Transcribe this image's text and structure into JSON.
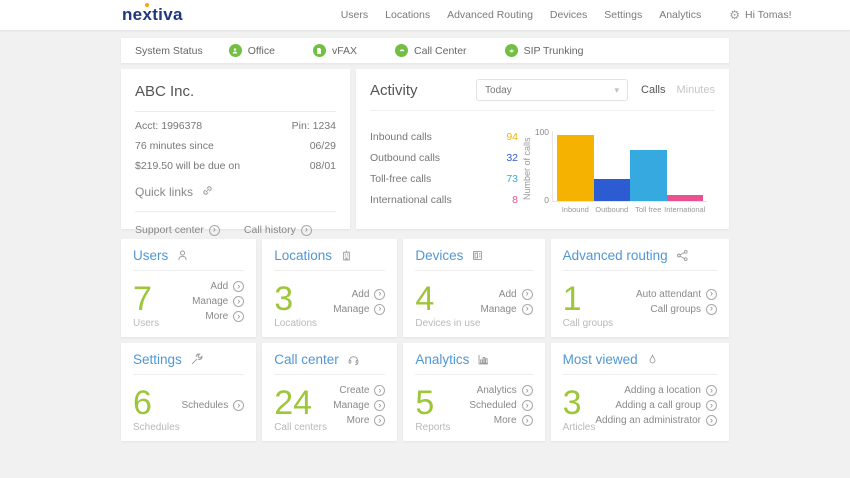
{
  "header": {
    "logo": "nextiva",
    "nav": [
      "Users",
      "Locations",
      "Advanced Routing",
      "Devices",
      "Settings",
      "Analytics"
    ],
    "greeting": "Hi Tomas!"
  },
  "status_bar": {
    "label": "System Status",
    "status_color": "#72bf44",
    "services": [
      {
        "name": "Office",
        "icon": "office-status-icon"
      },
      {
        "name": "vFAX",
        "icon": "vfax-status-icon"
      },
      {
        "name": "Call Center",
        "icon": "callcenter-status-icon"
      },
      {
        "name": "SIP Trunking",
        "icon": "sip-status-icon"
      }
    ]
  },
  "account": {
    "title": "ABC Inc.",
    "rows": [
      {
        "left": "Acct: 1996378",
        "right": "Pin: 1234"
      },
      {
        "left": "76 minutes since",
        "right": "06/29"
      },
      {
        "left": "$219.50 will be due on",
        "right": "08/01"
      }
    ],
    "quick_links_label": "Quick links",
    "footer_links": [
      "Support center",
      "Call history"
    ]
  },
  "activity": {
    "title": "Activity",
    "period_selected": "Today",
    "unit_tabs": [
      {
        "label": "Calls",
        "active": true
      },
      {
        "label": "Minutes",
        "active": false
      }
    ],
    "legend": [
      {
        "label": "Inbound calls",
        "value": "94",
        "color": "#f5b200"
      },
      {
        "label": "Outbound calls",
        "value": "32",
        "color": "#2d5bd1"
      },
      {
        "label": "Toll-free calls",
        "value": "73",
        "color": "#36a9e1"
      },
      {
        "label": "International calls",
        "value": "8",
        "color": "#e8538f"
      }
    ]
  },
  "chart_data": {
    "type": "bar",
    "title": "Activity - Today (Calls)",
    "categories": [
      "Inbound",
      "Outbound",
      "Toll free",
      "International"
    ],
    "values": [
      94,
      32,
      73,
      8
    ],
    "colors": [
      "#f5b200",
      "#2d5bd1",
      "#36a9e1",
      "#e8538f"
    ],
    "xlabel": "",
    "ylabel": "Number of calls",
    "ylim": [
      0,
      100
    ],
    "yticks": [
      0,
      100
    ],
    "grid": false,
    "legend_position": "left"
  },
  "cards": [
    {
      "title": "Users",
      "count": "7",
      "count_label": "Users",
      "links": [
        "Add",
        "Manage",
        "More"
      ]
    },
    {
      "title": "Locations",
      "count": "3",
      "count_label": "Locations",
      "links": [
        "Add",
        "Manage"
      ]
    },
    {
      "title": "Devices",
      "count": "4",
      "count_label": "Devices in use",
      "links": [
        "Add",
        "Manage"
      ]
    },
    {
      "title": "Advanced routing",
      "count": "1",
      "count_label": "Call groups",
      "links": [
        "Auto attendant",
        "Call groups"
      ]
    },
    {
      "title": "Settings",
      "count": "6",
      "count_label": "Schedules",
      "links": [
        "Schedules"
      ]
    },
    {
      "title": "Call center",
      "count": "24",
      "count_label": "Call centers",
      "links": [
        "Create",
        "Manage",
        "More"
      ]
    },
    {
      "title": "Analytics",
      "count": "5",
      "count_label": "Reports",
      "links": [
        "Analytics",
        "Scheduled",
        "More"
      ]
    },
    {
      "title": "Most viewed",
      "count": "3",
      "count_label": "Articles",
      "links": [
        "Adding a location",
        "Adding a call group",
        "Adding an administrator"
      ]
    }
  ],
  "colors": {
    "accent_blue": "#5097d5",
    "accent_green": "#9dc63b",
    "brand_navy": "#20377e",
    "brand_orange": "#f7a800",
    "status_green": "#72bf44",
    "page_background": "#f1f1f2"
  }
}
